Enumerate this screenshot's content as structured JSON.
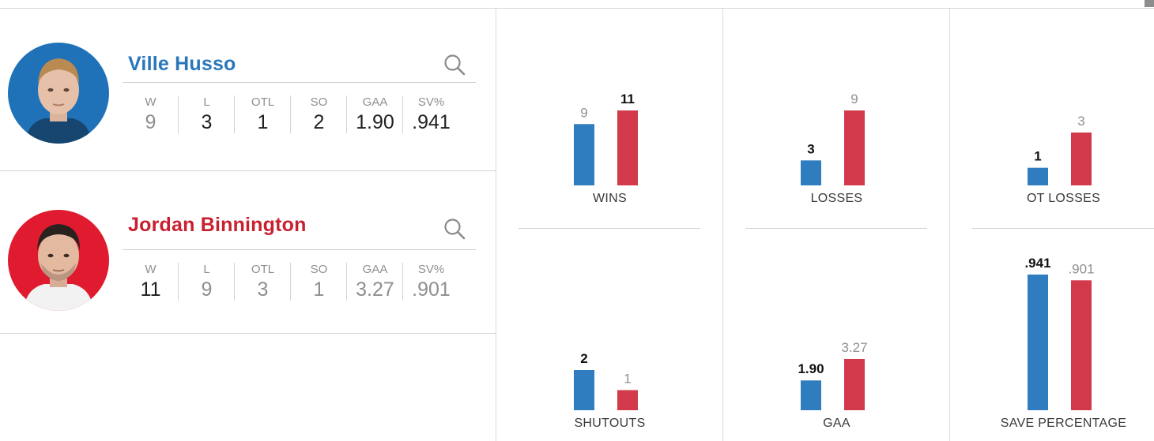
{
  "colors": {
    "player1": "#2f7dbf",
    "player2": "#d2394a",
    "best_text": "#111111",
    "worse_text": "#909090"
  },
  "players": [
    {
      "name": "Ville Husso",
      "color": "#2a76bb",
      "avatar_bg": "#1f72b8",
      "stats": [
        {
          "label": "W",
          "value": "9",
          "best": false
        },
        {
          "label": "L",
          "value": "3",
          "best": true
        },
        {
          "label": "OTL",
          "value": "1",
          "best": true
        },
        {
          "label": "SO",
          "value": "2",
          "best": true
        },
        {
          "label": "GAA",
          "value": "1.90",
          "best": true
        },
        {
          "label": "SV%",
          "value": ".941",
          "best": true
        }
      ]
    },
    {
      "name": "Jordan Binnington",
      "color": "#c8202f",
      "avatar_bg": "#e01a2f",
      "stats": [
        {
          "label": "W",
          "value": "11",
          "best": true
        },
        {
          "label": "L",
          "value": "9",
          "best": false
        },
        {
          "label": "OTL",
          "value": "3",
          "best": false
        },
        {
          "label": "SO",
          "value": "1",
          "best": false
        },
        {
          "label": "GAA",
          "value": "3.27",
          "best": false
        },
        {
          "label": "SV%",
          "value": ".901",
          "best": false
        }
      ]
    }
  ],
  "chart_data": [
    {
      "type": "bar",
      "category": "WINS",
      "values": [
        9,
        11
      ],
      "labels": [
        "9",
        "11"
      ],
      "best": [
        false,
        true
      ],
      "ylim": [
        0,
        11
      ]
    },
    {
      "type": "bar",
      "category": "LOSSES",
      "values": [
        3,
        9
      ],
      "labels": [
        "3",
        "9"
      ],
      "best": [
        true,
        false
      ],
      "ylim": [
        0,
        9
      ]
    },
    {
      "type": "bar",
      "category": "OT LOSSES",
      "values": [
        1,
        3
      ],
      "labels": [
        "1",
        "3"
      ],
      "best": [
        true,
        false
      ],
      "ylim": [
        0,
        3
      ]
    },
    {
      "type": "bar",
      "category": "SHUTOUTS",
      "values": [
        2,
        1
      ],
      "labels": [
        "2",
        "1"
      ],
      "best": [
        true,
        false
      ],
      "ylim": [
        0,
        2
      ]
    },
    {
      "type": "bar",
      "category": "GAA",
      "values": [
        1.9,
        3.27
      ],
      "labels": [
        "1.90",
        "3.27"
      ],
      "best": [
        true,
        false
      ],
      "ylim": [
        0,
        3.27
      ]
    },
    {
      "type": "bar",
      "category": "SAVE PERCENTAGE",
      "values": [
        0.941,
        0.901
      ],
      "labels": [
        ".941",
        ".901"
      ],
      "best": [
        true,
        false
      ],
      "ylim": [
        0,
        0.941
      ]
    }
  ]
}
